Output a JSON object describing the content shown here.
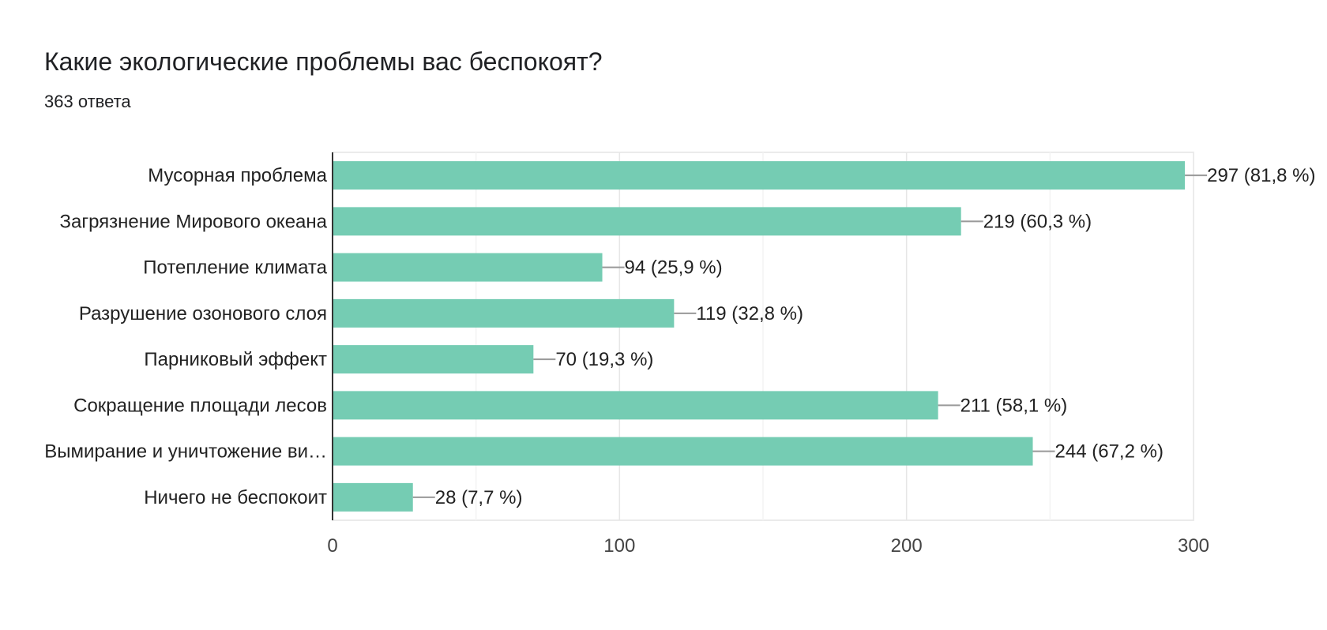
{
  "chart_data": {
    "type": "bar",
    "orientation": "horizontal",
    "title": "Какие экологические проблемы вас беспокоят?",
    "subtitle": "363 ответа",
    "categories": [
      "Мусорная проблема",
      "Загрязнение Мирового океана",
      "Потепление климата",
      "Разрушение озонового слоя",
      "Парниковый эффект",
      "Сокращение площади лесов",
      "Вымирание и уничтожение ви…",
      "Ничего не беспокоит"
    ],
    "values": [
      297,
      219,
      94,
      119,
      70,
      211,
      244,
      28
    ],
    "data_labels": [
      "297 (81,8 %)",
      "219 (60,3 %)",
      "94 (25,9 %)",
      "119 (32,8 %)",
      "70 (19,3 %)",
      "211 (58,1 %)",
      "244 (67,2 %)",
      "28 (7,7 %)"
    ],
    "xlim": [
      0,
      300
    ],
    "xticks": [
      "0",
      "100",
      "200",
      "300"
    ],
    "xlabel": "",
    "ylabel": "",
    "grid": true,
    "legend": "none",
    "bar_color": "#75ccb3"
  }
}
